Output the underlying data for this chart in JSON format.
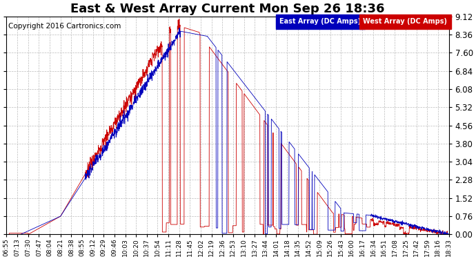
{
  "title": "East & West Array Current Mon Sep 26 18:36",
  "copyright": "Copyright 2016 Cartronics.com",
  "legend_east": "East Array (DC Amps)",
  "legend_west": "West Array (DC Amps)",
  "east_color": "#0000bb",
  "west_color": "#cc0000",
  "background_color": "#ffffff",
  "grid_color": "#bbbbbb",
  "ylim": [
    0.0,
    9.12
  ],
  "yticks": [
    0.0,
    0.76,
    1.52,
    2.28,
    3.04,
    3.8,
    4.56,
    5.32,
    6.08,
    6.84,
    7.6,
    8.36,
    9.12
  ],
  "xtick_labels": [
    "06:55",
    "07:13",
    "07:30",
    "07:47",
    "08:04",
    "08:21",
    "08:38",
    "08:55",
    "09:12",
    "09:29",
    "09:46",
    "10:03",
    "10:20",
    "10:37",
    "10:54",
    "11:11",
    "11:28",
    "11:45",
    "12:02",
    "12:19",
    "12:36",
    "12:53",
    "13:10",
    "13:27",
    "13:44",
    "14:01",
    "14:18",
    "14:35",
    "14:52",
    "15:09",
    "15:26",
    "15:43",
    "16:00",
    "16:17",
    "16:34",
    "16:51",
    "17:08",
    "17:25",
    "17:42",
    "17:59",
    "18:16",
    "18:33"
  ],
  "title_fontsize": 13,
  "copyright_fontsize": 7.5,
  "label_fontsize": 6.5,
  "ytick_fontsize": 8.5,
  "figsize": [
    6.9,
    3.75
  ],
  "dpi": 100
}
